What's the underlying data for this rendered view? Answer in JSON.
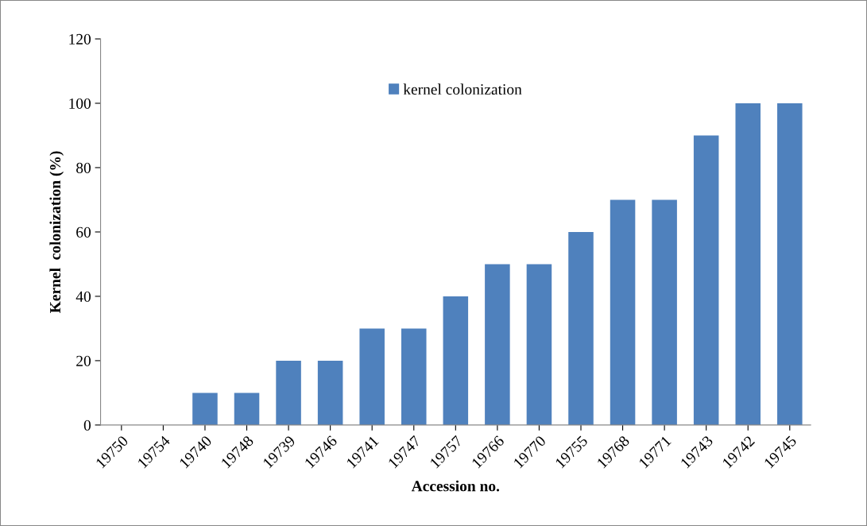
{
  "chart_data": {
    "type": "bar",
    "categories": [
      "19750",
      "19754",
      "19740",
      "19748",
      "19739",
      "19746",
      "19741",
      "19747",
      "19757",
      "19766",
      "19770",
      "19755",
      "19768",
      "19771",
      "19743",
      "19742",
      "19745"
    ],
    "series": [
      {
        "name": "kernel colonization",
        "color": "#4f81bd",
        "values": [
          0,
          0,
          10,
          10,
          20,
          20,
          30,
          30,
          40,
          50,
          50,
          60,
          70,
          70,
          90,
          100,
          100
        ]
      }
    ],
    "xlabel": "Accession no.",
    "ylabel": "Kernel  colonization (%)",
    "ylim": [
      0,
      120
    ],
    "yticks": [
      0,
      20,
      40,
      60,
      80,
      100,
      120
    ],
    "grid": false,
    "legend": "top"
  }
}
